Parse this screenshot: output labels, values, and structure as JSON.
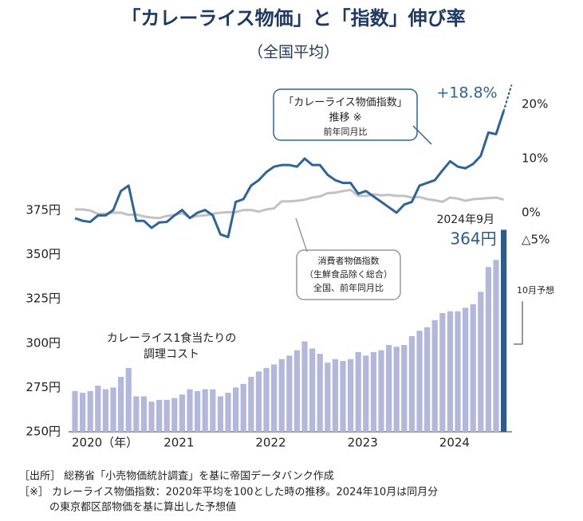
{
  "chart_data": {
    "type": "bar",
    "title": "「カレーライス物価」と「指数」伸び率",
    "subtitle": "（全国平均）",
    "categories": [
      "2020（年）",
      null,
      null,
      null,
      null,
      null,
      null,
      null,
      null,
      null,
      null,
      null,
      "2021",
      null,
      null,
      null,
      null,
      null,
      null,
      null,
      null,
      null,
      null,
      null,
      "2022",
      null,
      null,
      null,
      null,
      null,
      null,
      null,
      null,
      null,
      null,
      null,
      "2023",
      null,
      null,
      null,
      null,
      null,
      null,
      null,
      null,
      null,
      null,
      null,
      "2024",
      null,
      null,
      null,
      null,
      null,
      null,
      null,
      null,
      null
    ],
    "series": [
      {
        "type": "bar",
        "color": "#b4b7dc",
        "highlight_color": "#2d5b8a",
        "values": [
          273,
          272,
          273,
          276,
          274,
          275,
          281,
          286,
          270,
          270,
          267,
          268,
          268,
          269,
          271,
          274,
          273,
          274,
          274,
          270,
          272,
          275,
          277,
          281,
          284,
          286,
          288,
          291,
          293,
          296,
          301,
          297,
          294,
          289,
          291,
          290,
          291,
          295,
          293,
          295,
          296,
          299,
          298,
          299,
          304,
          307,
          309,
          313,
          317,
          318,
          318,
          320,
          322,
          329,
          343,
          347,
          364,
          null
        ],
        "value_labels": [
          null,
          null,
          null,
          null,
          null,
          null,
          null,
          null,
          null,
          null,
          null,
          null,
          null,
          null,
          null,
          null,
          null,
          null,
          null,
          null,
          null,
          null,
          null,
          null,
          null,
          null,
          null,
          null,
          null,
          null,
          null,
          null,
          null,
          null,
          null,
          null,
          null,
          null,
          null,
          null,
          null,
          null,
          null,
          null,
          null,
          null,
          null,
          null,
          null,
          null,
          null,
          null,
          null,
          null,
          null,
          null,
          "364円",
          null
        ]
      },
      {
        "type": "line",
        "axis": "y2",
        "color": "#2f6594",
        "values": [
          -1,
          -1.5,
          -1.7,
          -0.5,
          -0.5,
          0.5,
          4,
          5,
          -1.5,
          -1.5,
          -2.8,
          -1.8,
          -1.7,
          -0.5,
          0.5,
          -1,
          0,
          0.5,
          -0.5,
          -4,
          -4.5,
          2,
          2.5,
          5,
          6,
          7.5,
          8.5,
          8.8,
          8.8,
          8.5,
          10,
          8.8,
          8.8,
          7,
          6,
          5.5,
          5.5,
          3.5,
          4,
          3,
          2,
          1,
          0,
          1.5,
          2,
          5,
          5.5,
          6,
          7.8,
          9.5,
          8.5,
          8.2,
          9,
          10.5,
          14.8,
          14.5,
          18.8,
          null
        ],
        "value_labels": [
          null,
          null,
          null,
          null,
          null,
          null,
          null,
          null,
          null,
          null,
          null,
          null,
          null,
          null,
          null,
          null,
          null,
          null,
          null,
          null,
          null,
          null,
          null,
          null,
          null,
          null,
          null,
          null,
          null,
          null,
          null,
          null,
          null,
          null,
          null,
          null,
          null,
          null,
          null,
          null,
          null,
          null,
          null,
          null,
          null,
          null,
          null,
          null,
          null,
          null,
          null,
          null,
          null,
          null,
          null,
          null,
          "+18.8%",
          null
        ]
      },
      {
        "type": "line",
        "axis": "y2",
        "color": "#2f6594",
        "style": "dotted",
        "values": [
          null,
          null,
          null,
          null,
          null,
          null,
          null,
          null,
          null,
          null,
          null,
          null,
          null,
          null,
          null,
          null,
          null,
          null,
          null,
          null,
          null,
          null,
          null,
          null,
          null,
          null,
          null,
          null,
          null,
          null,
          null,
          null,
          null,
          null,
          null,
          null,
          null,
          null,
          null,
          null,
          null,
          null,
          null,
          null,
          null,
          null,
          null,
          null,
          null,
          null,
          null,
          null,
          null,
          null,
          null,
          null,
          18.8,
          23.5
        ]
      },
      {
        "type": "line",
        "axis": "y2",
        "color": "#c2c2c2",
        "values": [
          0.6,
          0.6,
          0.4,
          -0.2,
          -0.2,
          0,
          0,
          -0.4,
          -0.3,
          -0.7,
          -0.9,
          -1,
          -0.6,
          -0.4,
          -0.1,
          -0.9,
          -0.6,
          -0.5,
          -0.2,
          0,
          0.1,
          0.1,
          0.5,
          0.5,
          0.2,
          0.6,
          0.8,
          2.1,
          2.1,
          2.2,
          2.4,
          2.8,
          3,
          3.6,
          3.7,
          4,
          4.2,
          3.1,
          3.1,
          3.4,
          3.2,
          3.3,
          3.1,
          3.1,
          2.8,
          2.9,
          2.5,
          2.3,
          2,
          2.8,
          2.6,
          2.2,
          2.5,
          2.6,
          2.7,
          2.8,
          2.4,
          null
        ]
      }
    ],
    "ylim": [
      250,
      375
    ],
    "yticks": [
      {
        "value": 250,
        "label": "250円"
      },
      {
        "value": 275,
        "label": "275円"
      },
      {
        "value": 300,
        "label": "300円"
      },
      {
        "value": 325,
        "label": "325円"
      },
      {
        "value": 350,
        "label": "350円"
      },
      {
        "value": 375,
        "label": "375円"
      }
    ],
    "y2lim": [
      -5,
      20
    ],
    "y2ticks": [
      {
        "value": -5,
        "label": "△5%"
      },
      {
        "value": 0,
        "label": "0%"
      },
      {
        "value": 10,
        "label": "10%"
      },
      {
        "value": 20,
        "label": "20%"
      }
    ],
    "annotations": [
      "「カレーライス物価指数」",
      "推移 ※",
      "前年同月比",
      "消費者物価指数",
      "（生鮮食品除く総合）",
      "全国、前年同月比",
      "2024年9月",
      "10月予想",
      "カレーライス1食当たりの",
      "調理コスト"
    ],
    "notes": [
      "［出所］ 総務省「小売物価統計調査」を基に帝国データバンク作成",
      "［※］ カレーライス物価指数：2020年平均を100とした時の推移。2024年10月は同月分",
      "の東京都区部物価を基に算出した予想値"
    ]
  }
}
